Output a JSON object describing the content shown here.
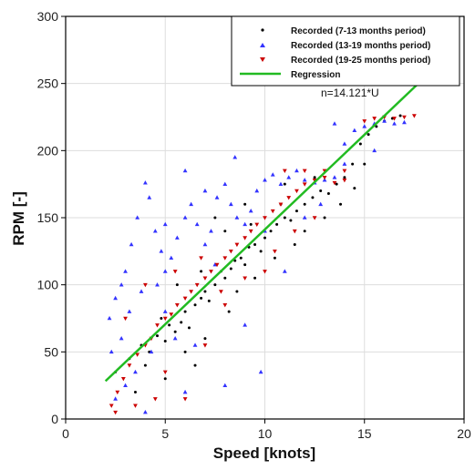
{
  "chart_data": {
    "type": "scatter",
    "title": "",
    "xlabel": "Speed [knots]",
    "ylabel": "RPM [-]",
    "xlim": [
      0,
      20
    ],
    "ylim": [
      0,
      300
    ],
    "xticks": [
      0,
      5,
      10,
      15,
      20
    ],
    "yticks": [
      0,
      50,
      100,
      150,
      200,
      250,
      300
    ],
    "grid": true,
    "legend_position": "top-right",
    "series": [
      {
        "name": "Recorded (7-13 months period)",
        "marker": "dot",
        "color": "#000000",
        "points": [
          [
            2.5,
            35
          ],
          [
            3.2,
            45
          ],
          [
            3.8,
            55
          ],
          [
            4.2,
            50
          ],
          [
            4.6,
            62
          ],
          [
            5.0,
            58
          ],
          [
            5.2,
            70
          ],
          [
            5.5,
            65
          ],
          [
            5.8,
            72
          ],
          [
            6.0,
            80
          ],
          [
            6.2,
            68
          ],
          [
            6.5,
            85
          ],
          [
            6.8,
            90
          ],
          [
            7.0,
            95
          ],
          [
            7.2,
            88
          ],
          [
            7.5,
            100
          ],
          [
            7.8,
            110
          ],
          [
            8.0,
            105
          ],
          [
            8.3,
            112
          ],
          [
            8.5,
            118
          ],
          [
            8.8,
            120
          ],
          [
            9.0,
            115
          ],
          [
            9.2,
            128
          ],
          [
            9.5,
            130
          ],
          [
            9.8,
            125
          ],
          [
            10.0,
            135
          ],
          [
            10.3,
            140
          ],
          [
            10.6,
            145
          ],
          [
            11.0,
            150
          ],
          [
            11.3,
            148
          ],
          [
            11.6,
            155
          ],
          [
            12.0,
            160
          ],
          [
            12.4,
            165
          ],
          [
            12.8,
            170
          ],
          [
            13.2,
            168
          ],
          [
            13.6,
            175
          ],
          [
            14.0,
            180
          ],
          [
            14.4,
            190
          ],
          [
            14.8,
            205
          ],
          [
            15.2,
            212
          ],
          [
            15.6,
            218
          ],
          [
            16.0,
            222
          ],
          [
            16.4,
            224
          ],
          [
            16.8,
            226
          ],
          [
            7.5,
            150
          ],
          [
            8.0,
            140
          ],
          [
            9.0,
            160
          ],
          [
            6.5,
            40
          ],
          [
            5.0,
            30
          ],
          [
            3.5,
            20
          ],
          [
            11.5,
            130
          ],
          [
            13.0,
            150
          ],
          [
            14.5,
            172
          ],
          [
            12.5,
            180
          ],
          [
            10.5,
            120
          ],
          [
            9.5,
            105
          ],
          [
            8.2,
            80
          ],
          [
            7.0,
            60
          ],
          [
            6.0,
            50
          ],
          [
            4.0,
            40
          ],
          [
            15.0,
            190
          ],
          [
            12.0,
            140
          ],
          [
            11.0,
            175
          ],
          [
            6.8,
            110
          ],
          [
            5.6,
            100
          ],
          [
            4.8,
            75
          ],
          [
            8.6,
            95
          ],
          [
            9.3,
            145
          ],
          [
            10.8,
            160
          ],
          [
            13.8,
            160
          ]
        ]
      },
      {
        "name": "Recorded (13-19 months period)",
        "marker": "triangle-up",
        "color": "#3333ff",
        "points": [
          [
            2.2,
            75
          ],
          [
            2.5,
            90
          ],
          [
            2.8,
            100
          ],
          [
            3.0,
            110
          ],
          [
            3.3,
            130
          ],
          [
            3.6,
            150
          ],
          [
            4.0,
            176
          ],
          [
            4.2,
            165
          ],
          [
            4.5,
            140
          ],
          [
            4.8,
            125
          ],
          [
            5.0,
            110
          ],
          [
            5.3,
            120
          ],
          [
            5.6,
            135
          ],
          [
            6.0,
            150
          ],
          [
            6.3,
            160
          ],
          [
            6.6,
            145
          ],
          [
            7.0,
            130
          ],
          [
            7.3,
            140
          ],
          [
            7.6,
            165
          ],
          [
            8.0,
            175
          ],
          [
            8.3,
            160
          ],
          [
            8.6,
            150
          ],
          [
            9.0,
            145
          ],
          [
            9.3,
            155
          ],
          [
            9.6,
            170
          ],
          [
            10.0,
            178
          ],
          [
            10.4,
            182
          ],
          [
            10.8,
            175
          ],
          [
            11.2,
            180
          ],
          [
            11.6,
            185
          ],
          [
            12.0,
            178
          ],
          [
            12.5,
            176
          ],
          [
            13.0,
            178
          ],
          [
            13.5,
            180
          ],
          [
            14.0,
            205
          ],
          [
            14.5,
            215
          ],
          [
            15.0,
            218
          ],
          [
            15.5,
            220
          ],
          [
            16.0,
            222
          ],
          [
            16.5,
            220
          ],
          [
            17.0,
            221
          ],
          [
            2.5,
            15
          ],
          [
            3.0,
            25
          ],
          [
            3.5,
            35
          ],
          [
            4.0,
            5
          ],
          [
            4.3,
            50
          ],
          [
            5.0,
            80
          ],
          [
            5.5,
            60
          ],
          [
            6.0,
            20
          ],
          [
            6.5,
            55
          ],
          [
            2.8,
            60
          ],
          [
            3.2,
            80
          ],
          [
            2.3,
            50
          ],
          [
            9.8,
            35
          ],
          [
            8.0,
            25
          ],
          [
            11.0,
            110
          ],
          [
            12.0,
            150
          ],
          [
            7.0,
            170
          ],
          [
            6.0,
            185
          ],
          [
            8.5,
            195
          ],
          [
            10.0,
            140
          ],
          [
            13.5,
            220
          ],
          [
            9.0,
            70
          ],
          [
            5.0,
            145
          ],
          [
            3.8,
            95
          ],
          [
            4.6,
            100
          ],
          [
            7.5,
            115
          ],
          [
            14.0,
            190
          ],
          [
            15.5,
            200
          ],
          [
            12.8,
            160
          ]
        ]
      },
      {
        "name": "Recorded (19-25 months period)",
        "marker": "triangle-down",
        "color": "#cc0000",
        "points": [
          [
            2.3,
            10
          ],
          [
            2.6,
            20
          ],
          [
            2.9,
            30
          ],
          [
            3.2,
            40
          ],
          [
            3.6,
            48
          ],
          [
            4.0,
            55
          ],
          [
            4.3,
            60
          ],
          [
            4.6,
            70
          ],
          [
            5.0,
            75
          ],
          [
            5.3,
            78
          ],
          [
            5.6,
            85
          ],
          [
            6.0,
            90
          ],
          [
            6.3,
            95
          ],
          [
            6.6,
            100
          ],
          [
            7.0,
            105
          ],
          [
            7.3,
            110
          ],
          [
            7.6,
            115
          ],
          [
            8.0,
            120
          ],
          [
            8.3,
            125
          ],
          [
            8.6,
            130
          ],
          [
            9.0,
            135
          ],
          [
            9.3,
            140
          ],
          [
            9.6,
            145
          ],
          [
            10.0,
            150
          ],
          [
            10.4,
            155
          ],
          [
            10.8,
            160
          ],
          [
            11.2,
            165
          ],
          [
            11.6,
            170
          ],
          [
            12.0,
            175
          ],
          [
            12.5,
            178
          ],
          [
            13.0,
            180
          ],
          [
            13.5,
            176
          ],
          [
            14.0,
            178
          ],
          [
            15.0,
            222
          ],
          [
            15.5,
            224
          ],
          [
            16.0,
            225
          ],
          [
            16.5,
            224
          ],
          [
            17.0,
            225
          ],
          [
            17.5,
            226
          ],
          [
            11.0,
            185
          ],
          [
            12.0,
            185
          ],
          [
            13.0,
            185
          ],
          [
            14.0,
            185
          ],
          [
            3.0,
            75
          ],
          [
            4.0,
            100
          ],
          [
            5.0,
            35
          ],
          [
            6.0,
            15
          ],
          [
            7.0,
            55
          ],
          [
            8.0,
            85
          ],
          [
            9.0,
            105
          ],
          [
            2.5,
            5
          ],
          [
            3.5,
            10
          ],
          [
            4.5,
            15
          ],
          [
            10.0,
            110
          ],
          [
            10.5,
            125
          ],
          [
            12.5,
            150
          ],
          [
            11.5,
            140
          ],
          [
            6.8,
            120
          ],
          [
            5.5,
            110
          ],
          [
            7.8,
            95
          ]
        ]
      },
      {
        "name": "Regression",
        "marker": "line",
        "color": "#22bb22",
        "x": [
          2.0,
          17.7
        ],
        "y": [
          28.24,
          249.94
        ]
      }
    ],
    "annotations": [
      {
        "text": "n=14.121*U",
        "x": 13.0,
        "y": 241
      }
    ]
  }
}
